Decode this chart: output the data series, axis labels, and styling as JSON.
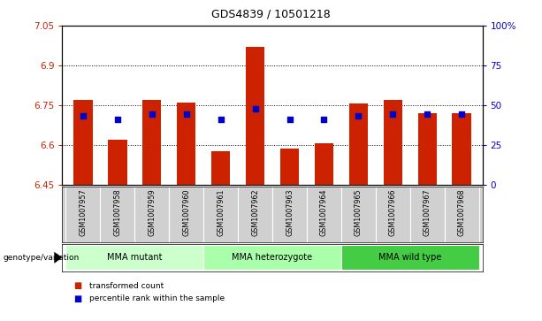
{
  "title": "GDS4839 / 10501218",
  "samples": [
    "GSM1007957",
    "GSM1007958",
    "GSM1007959",
    "GSM1007960",
    "GSM1007961",
    "GSM1007962",
    "GSM1007963",
    "GSM1007964",
    "GSM1007965",
    "GSM1007966",
    "GSM1007967",
    "GSM1007968"
  ],
  "bar_values": [
    6.77,
    6.62,
    6.77,
    6.76,
    6.575,
    6.97,
    6.585,
    6.605,
    6.755,
    6.77,
    6.72,
    6.72
  ],
  "percentile_values": [
    6.71,
    6.695,
    6.715,
    6.715,
    6.695,
    6.735,
    6.695,
    6.695,
    6.71,
    6.715,
    6.715,
    6.715
  ],
  "ymin": 6.45,
  "ymax": 7.05,
  "yticks": [
    6.45,
    6.6,
    6.75,
    6.9,
    7.05
  ],
  "ytick_labels": [
    "6.45",
    "6.6",
    "6.75",
    "6.9",
    "7.05"
  ],
  "y2ticks": [
    0,
    25,
    50,
    75,
    100
  ],
  "y2tick_labels": [
    "0",
    "25",
    "50",
    "75",
    "100%"
  ],
  "grid_lines": [
    6.6,
    6.75,
    6.9
  ],
  "bar_color": "#cc2200",
  "dot_color": "#0000cc",
  "bar_bottom": 6.45,
  "groups": [
    {
      "label": "MMA mutant",
      "start": 0,
      "end": 4,
      "color": "#ccffcc"
    },
    {
      "label": "MMA heterozygote",
      "start": 4,
      "end": 8,
      "color": "#aaffaa"
    },
    {
      "label": "MMA wild type",
      "start": 8,
      "end": 12,
      "color": "#44cc44"
    }
  ],
  "genotype_label": "genotype/variation",
  "legend_items": [
    {
      "color": "#cc2200",
      "label": "transformed count"
    },
    {
      "color": "#0000cc",
      "label": "percentile rank within the sample"
    }
  ],
  "bg_color": "#ffffff",
  "plot_bg": "#ffffff",
  "label_bg": "#d0d0d0"
}
